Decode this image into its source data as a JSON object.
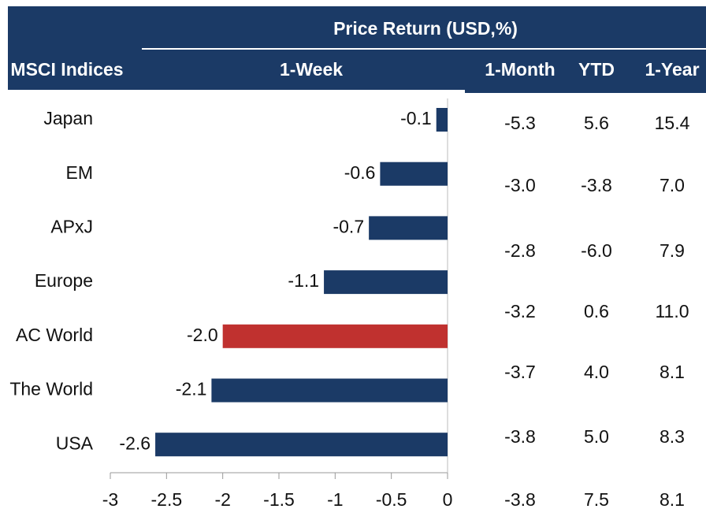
{
  "header": {
    "group_title": "Price Return (USD,%)",
    "columns": [
      "MSCI Indices",
      "1-Week",
      "1-Month",
      "YTD",
      "1-Year"
    ]
  },
  "chart_data": {
    "type": "bar",
    "orientation": "horizontal",
    "categories": [
      "Japan",
      "EM",
      "APxJ",
      "Europe",
      "AC World",
      "The World",
      "USA"
    ],
    "values": [
      -0.1,
      -0.6,
      -0.7,
      -1.1,
      -2.0,
      -2.1,
      -2.6
    ],
    "value_labels": [
      "-0.1",
      "-0.6",
      "-0.7",
      "-1.1",
      "-2.0",
      "-2.1",
      "-2.6"
    ],
    "colors": [
      "#1b3a66",
      "#1b3a66",
      "#1b3a66",
      "#1b3a66",
      "#c0312f",
      "#1b3a66",
      "#1b3a66"
    ],
    "xlim": [
      -3,
      0
    ],
    "xticks": [
      -3,
      -2.5,
      -2,
      -1.5,
      -1,
      -0.5,
      0
    ]
  },
  "table": {
    "rows": [
      [
        "-5.3",
        "5.6",
        "15.4"
      ],
      [
        "-3.0",
        "-3.8",
        "7.0"
      ],
      [
        "-2.8",
        "-6.0",
        "7.9"
      ],
      [
        "-3.2",
        "0.6",
        "11.0"
      ],
      [
        "-3.7",
        "4.0",
        "8.1"
      ],
      [
        "-3.8",
        "5.0",
        "8.3"
      ],
      [
        "-3.8",
        "7.5",
        "8.1"
      ]
    ]
  }
}
